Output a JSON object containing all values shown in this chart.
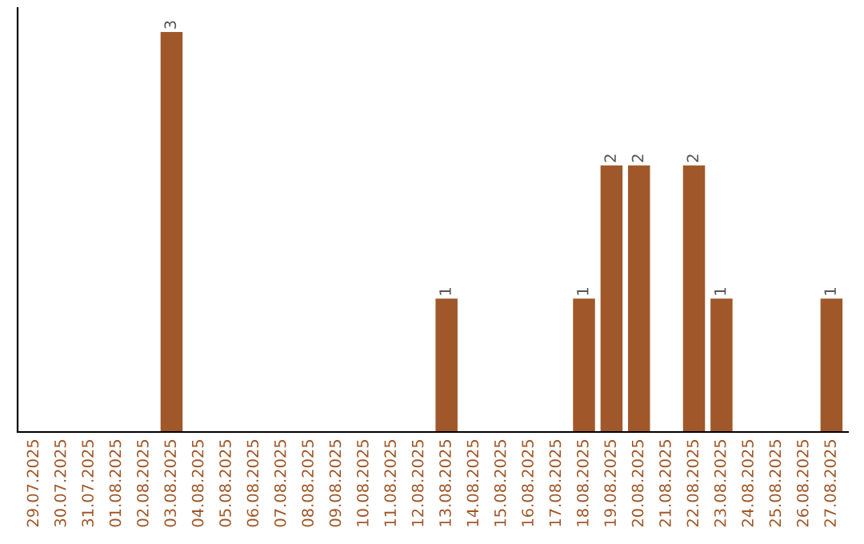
{
  "chart_data": {
    "type": "bar",
    "categories": [
      "29.07.2025",
      "30.07.2025",
      "31.07.2025",
      "01.08.2025",
      "02.08.2025",
      "03.08.2025",
      "04.08.2025",
      "05.08.2025",
      "06.08.2025",
      "07.08.2025",
      "08.08.2025",
      "09.08.2025",
      "10.08.2025",
      "11.08.2025",
      "12.08.2025",
      "13.08.2025",
      "14.08.2025",
      "15.08.2025",
      "16.08.2025",
      "17.08.2025",
      "18.08.2025",
      "19.08.2025",
      "20.08.2025",
      "21.08.2025",
      "22.08.2025",
      "23.08.2025",
      "24.08.2025",
      "25.08.2025",
      "26.08.2025",
      "27.08.2025"
    ],
    "values": [
      0,
      0,
      0,
      0,
      0,
      3,
      0,
      0,
      0,
      0,
      0,
      0,
      0,
      0,
      0,
      1,
      0,
      0,
      0,
      0,
      1,
      2,
      2,
      0,
      2,
      1,
      0,
      0,
      0,
      1
    ],
    "color": "#a0582a",
    "ylim": [
      0,
      3.18
    ],
    "tick_labels": "x",
    "value_labels": [
      null,
      null,
      null,
      null,
      null,
      "3",
      null,
      null,
      null,
      null,
      null,
      null,
      null,
      null,
      null,
      "1",
      null,
      null,
      null,
      null,
      "1",
      "2",
      "2",
      null,
      "2",
      "1",
      null,
      null,
      null,
      "1"
    ],
    "grid": false,
    "legend": false
  }
}
